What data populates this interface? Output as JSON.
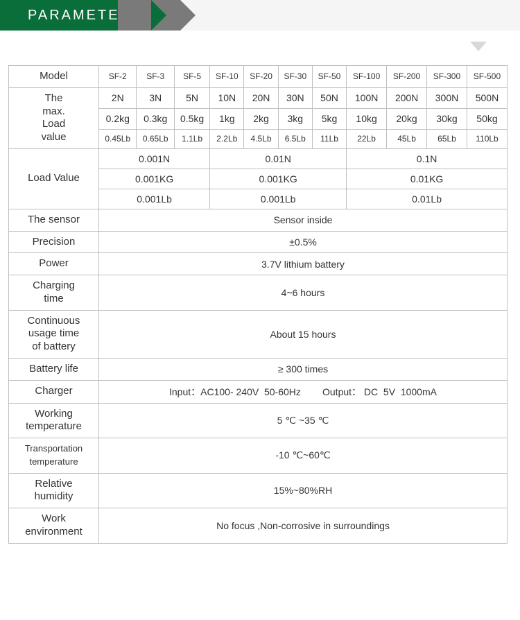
{
  "header": {
    "title": "PARAMETER"
  },
  "colors": {
    "header_green": "#0a6e3a",
    "ribbon_gray": "#7a7a7a",
    "row_header_green": "#0a9850",
    "border": "#bfbfbf",
    "bg": "#ffffff",
    "header_bar_bg": "#f5f5f5",
    "pointer": "#d8d8d8"
  },
  "models": [
    "SF-2",
    "SF-3",
    "SF-5",
    "SF-10",
    "SF-20",
    "SF-30",
    "SF-50",
    "SF-100",
    "SF-200",
    "SF-300",
    "SF-500"
  ],
  "labels": {
    "model": "Model",
    "max_load": "The\nmax.\nLoad\nvalue",
    "load_value": "Load Value",
    "sensor": "The sensor",
    "precision": "Precision",
    "power": "Power",
    "charging_time": "Charging\ntime",
    "continuous_usage": "Continuous\nusage  time\nof battery",
    "battery_life": "Battery life",
    "charger": "Charger",
    "working_temp": "Working\ntemperature",
    "transport_temp": "Transportation\ntemperature",
    "humidity": "Relative\nhumidity",
    "work_env": "Work\nenvironment"
  },
  "max_load": {
    "n": [
      "2N",
      "3N",
      "5N",
      "10N",
      "20N",
      "30N",
      "50N",
      "100N",
      "200N",
      "300N",
      "500N"
    ],
    "kg": [
      "0.2kg",
      "0.3kg",
      "0.5kg",
      "1kg",
      "2kg",
      "3kg",
      "5kg",
      "10kg",
      "20kg",
      "30kg",
      "50kg"
    ],
    "lb": [
      "0.45Lb",
      "0.65Lb",
      "1.1Lb",
      "2.2Lb",
      "4.5Lb",
      "6.5Lb",
      "11Lb",
      "22Lb",
      "45Lb",
      "65Lb",
      "110Lb"
    ]
  },
  "load_value": {
    "n": [
      "0.001N",
      "0.01N",
      "0.1N"
    ],
    "kg": [
      "0.001KG",
      "0.001KG",
      "0.01KG"
    ],
    "lb": [
      "0.001Lb",
      "0.001Lb",
      "0.01Lb"
    ]
  },
  "specs": {
    "sensor": "Sensor inside",
    "precision": "±0.5%",
    "power": "3.7V lithium battery",
    "charging_time": "4~6 hours",
    "continuous_usage": "About 15 hours",
    "battery_life": "≥ 300 times",
    "charger": "Input：AC100- 240V  50-60Hz        Output： DC  5V  1000mA",
    "working_temp": "5 ℃ ~35 ℃",
    "transport_temp": "-10 ℃~60℃",
    "humidity": "15%~80%RH",
    "work_env": "No focus ,Non-corrosive in surroundings"
  }
}
